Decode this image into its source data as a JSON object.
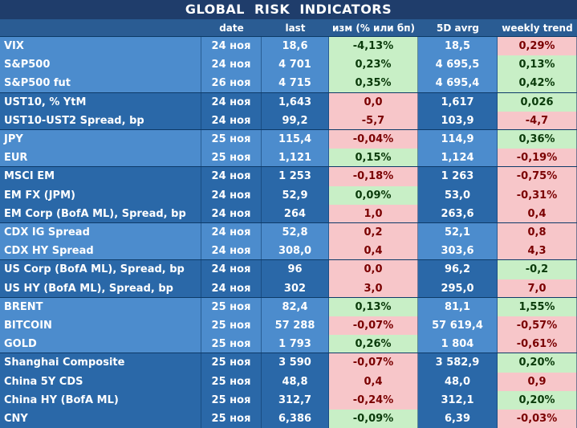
{
  "title": "GLOBAL   RISK   INDICATORS",
  "headers": [
    "date",
    "last",
    "изм (% или бп)",
    "5D avrg",
    "weekly trend"
  ],
  "colors": {
    "up": "#c8efc6",
    "down": "#f7c6c9",
    "band_light": "#4c8ccd",
    "band_dark": "#2a68a8"
  },
  "groups": [
    {
      "tone": "light",
      "rows": [
        {
          "name": "VIX",
          "date": "24 ноя",
          "last": "18,6",
          "chg": "-4,13%",
          "chg_color": "green",
          "avg": "18,5",
          "trend": "0,29%",
          "trend_color": "red"
        },
        {
          "name": "S&P500",
          "date": "24 ноя",
          "last": "4 701",
          "chg": "0,23%",
          "chg_color": "green",
          "avg": "4 695,5",
          "trend": "0,13%",
          "trend_color": "green"
        },
        {
          "name": "S&P500 fut",
          "date": "26 ноя",
          "last": "4 715",
          "chg": "0,35%",
          "chg_color": "green",
          "avg": "4 695,4",
          "trend": "0,42%",
          "trend_color": "green"
        }
      ]
    },
    {
      "tone": "dark",
      "rows": [
        {
          "name": "UST10, % YtM",
          "date": "24 ноя",
          "last": "1,643",
          "chg": "0,0",
          "chg_color": "red",
          "avg": "1,617",
          "trend": "0,026",
          "trend_color": "green"
        },
        {
          "name": "UST10-UST2 Spread, bp",
          "date": "24 ноя",
          "last": "99,2",
          "chg": "-5,7",
          "chg_color": "red",
          "avg": "103,9",
          "trend": "-4,7",
          "trend_color": "red"
        }
      ]
    },
    {
      "tone": "light",
      "rows": [
        {
          "name": "JPY",
          "date": "25 ноя",
          "last": "115,4",
          "chg": "-0,04%",
          "chg_color": "red",
          "avg": "114,9",
          "trend": "0,36%",
          "trend_color": "green"
        },
        {
          "name": "EUR",
          "date": "25 ноя",
          "last": "1,121",
          "chg": "0,15%",
          "chg_color": "green",
          "avg": "1,124",
          "trend": "-0,19%",
          "trend_color": "red"
        }
      ]
    },
    {
      "tone": "dark",
      "rows": [
        {
          "name": "MSCI EM",
          "date": "24 ноя",
          "last": "1 253",
          "chg": "-0,18%",
          "chg_color": "red",
          "avg": "1 263",
          "trend": "-0,75%",
          "trend_color": "red"
        },
        {
          "name": "EM FX (JPM)",
          "date": "24 ноя",
          "last": "52,9",
          "chg": "0,09%",
          "chg_color": "green",
          "avg": "53,0",
          "trend": "-0,31%",
          "trend_color": "red"
        },
        {
          "name": "EM Corp (BofA ML), Spread, bp",
          "date": "24 ноя",
          "last": "264",
          "chg": "1,0",
          "chg_color": "red",
          "avg": "263,6",
          "trend": "0,4",
          "trend_color": "red"
        }
      ]
    },
    {
      "tone": "light",
      "rows": [
        {
          "name": "CDX IG Spread",
          "date": "24 ноя",
          "last": "52,8",
          "chg": "0,2",
          "chg_color": "red",
          "avg": "52,1",
          "trend": "0,8",
          "trend_color": "red"
        },
        {
          "name": "CDX HY Spread",
          "date": "24 ноя",
          "last": "308,0",
          "chg": "0,4",
          "chg_color": "red",
          "avg": "303,6",
          "trend": "4,3",
          "trend_color": "red"
        }
      ]
    },
    {
      "tone": "dark",
      "rows": [
        {
          "name": "US Corp (BofA ML), Spread, bp",
          "date": "24 ноя",
          "last": "96",
          "chg": "0,0",
          "chg_color": "red",
          "avg": "96,2",
          "trend": "-0,2",
          "trend_color": "green"
        },
        {
          "name": "US HY (BofA ML), Spread, bp",
          "date": "24 ноя",
          "last": "302",
          "chg": "3,0",
          "chg_color": "red",
          "avg": "295,0",
          "trend": "7,0",
          "trend_color": "red"
        }
      ]
    },
    {
      "tone": "light",
      "rows": [
        {
          "name": "BRENT",
          "date": "25 ноя",
          "last": "82,4",
          "chg": "0,13%",
          "chg_color": "green",
          "avg": "81,1",
          "trend": "1,55%",
          "trend_color": "green"
        },
        {
          "name": "BITCOIN",
          "date": "25 ноя",
          "last": "57 288",
          "chg": "-0,07%",
          "chg_color": "red",
          "avg": "57 619,4",
          "trend": "-0,57%",
          "trend_color": "red"
        },
        {
          "name": "GOLD",
          "date": "25 ноя",
          "last": "1 793",
          "chg": "0,26%",
          "chg_color": "green",
          "avg": "1 804",
          "trend": "-0,61%",
          "trend_color": "red"
        }
      ]
    },
    {
      "tone": "dark",
      "rows": [
        {
          "name": "Shanghai Composite",
          "date": "25 ноя",
          "last": "3 590",
          "chg": "-0,07%",
          "chg_color": "red",
          "avg": "3 582,9",
          "trend": "0,20%",
          "trend_color": "green"
        },
        {
          "name": "China 5Y CDS",
          "date": "25 ноя",
          "last": "48,8",
          "chg": "0,4",
          "chg_color": "red",
          "avg": "48,0",
          "trend": "0,9",
          "trend_color": "red"
        },
        {
          "name": "China HY (BofA ML)",
          "date": "25 ноя",
          "last": "312,7",
          "chg": "-0,24%",
          "chg_color": "red",
          "avg": "312,1",
          "trend": "0,20%",
          "trend_color": "green"
        },
        {
          "name": "CNY",
          "date": "25 ноя",
          "last": "6,386",
          "chg": "-0,09%",
          "chg_color": "green",
          "avg": "6,39",
          "trend": "-0,03%",
          "trend_color": "red"
        }
      ]
    }
  ]
}
